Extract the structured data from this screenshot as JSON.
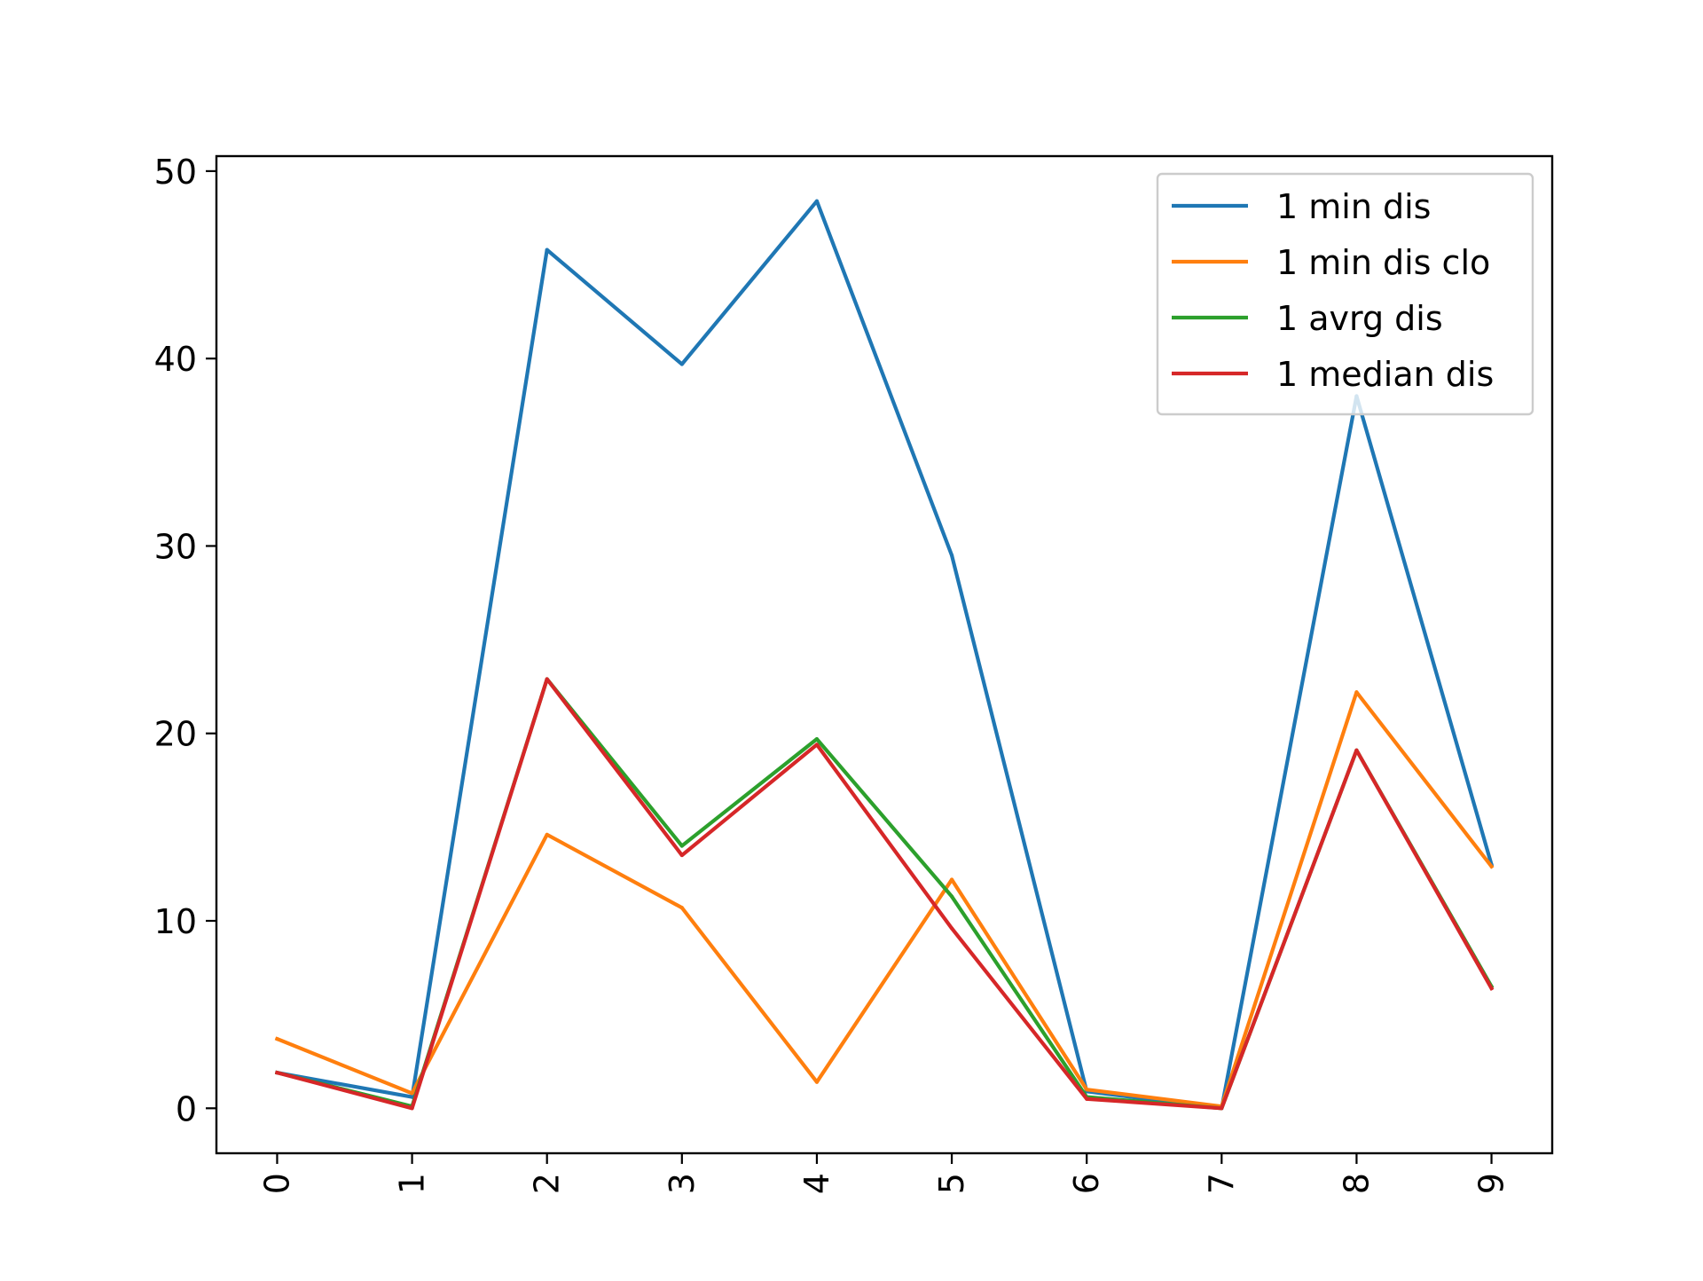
{
  "chart_data": {
    "type": "line",
    "x": [
      0,
      1,
      2,
      3,
      4,
      5,
      6,
      7,
      8,
      9
    ],
    "x_tick_labels": [
      "0",
      "1",
      "2",
      "3",
      "4",
      "5",
      "6",
      "7",
      "8",
      "9"
    ],
    "x_tick_rotation": "vertical",
    "y_ticks": [
      0,
      10,
      20,
      30,
      40,
      50
    ],
    "y_tick_labels": [
      "0",
      "10",
      "20",
      "30",
      "40",
      "50"
    ],
    "xlim": [
      -0.45,
      9.45
    ],
    "ylim": [
      -2.4,
      50.8
    ],
    "grid": false,
    "legend_position": "top-right",
    "series": [
      {
        "name": "1 min dis",
        "color": "#1f77b4",
        "values": [
          1.9,
          0.6,
          45.8,
          39.7,
          48.4,
          29.5,
          0.9,
          0.0,
          38.0,
          13.0
        ]
      },
      {
        "name": "1 min dis clo",
        "color": "#ff7f0e",
        "values": [
          3.7,
          0.8,
          14.6,
          10.7,
          1.4,
          12.2,
          1.0,
          0.1,
          22.2,
          12.9
        ]
      },
      {
        "name": "1 avrg dis",
        "color": "#2ca02c",
        "values": [
          1.9,
          0.1,
          22.9,
          14.0,
          19.7,
          11.3,
          0.6,
          0.0,
          19.1,
          6.5
        ]
      },
      {
        "name": "1 median dis",
        "color": "#d62728",
        "values": [
          1.9,
          0.0,
          22.9,
          13.5,
          19.4,
          9.6,
          0.5,
          0.0,
          19.1,
          6.4
        ]
      }
    ]
  }
}
